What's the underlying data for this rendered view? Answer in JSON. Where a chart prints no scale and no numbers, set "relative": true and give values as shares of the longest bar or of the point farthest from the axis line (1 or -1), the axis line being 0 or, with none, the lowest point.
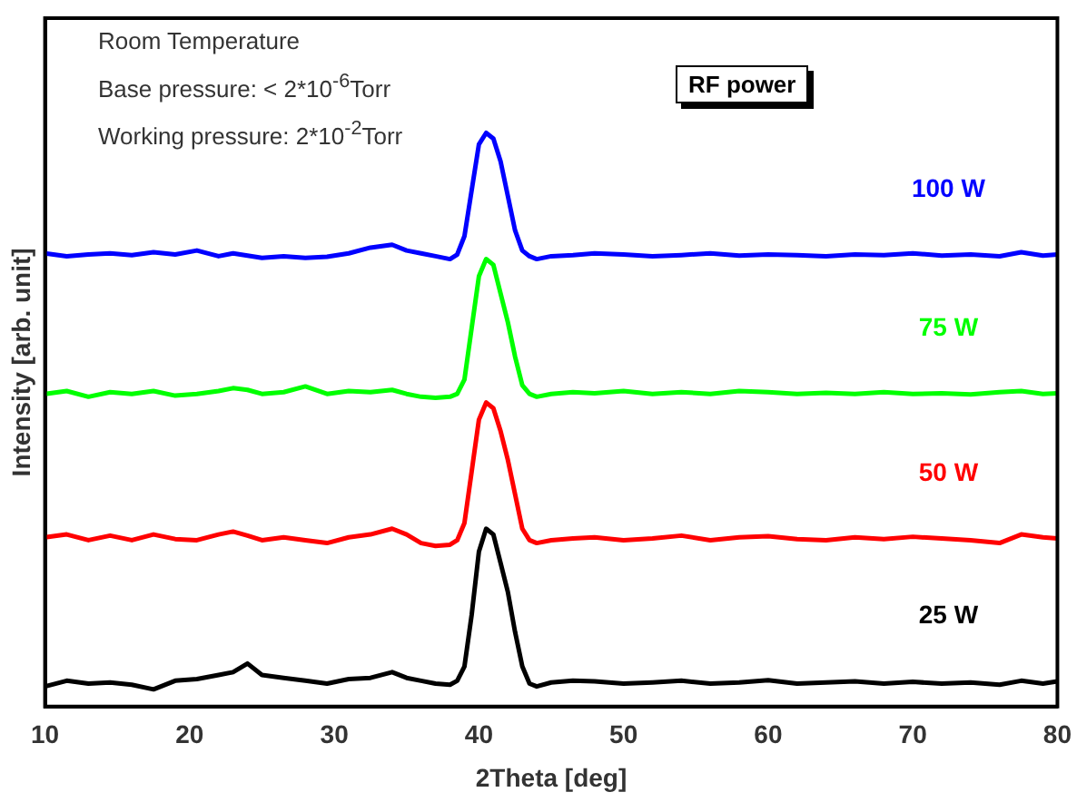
{
  "chart_data": {
    "type": "line",
    "relative": true,
    "xlabel": "2Theta [deg]",
    "ylabel": "Intensity [arb. unit]",
    "legend_title": "RF power",
    "annotations": [
      "Room Temperature",
      "Base pressure: < 2*10$^{-6}$Torr",
      "Working pressure: 2*10$^{-2}$Torr"
    ],
    "xlim": [
      10,
      80
    ],
    "xticks": [
      10,
      20,
      30,
      40,
      50,
      60,
      70,
      80
    ],
    "grid": false,
    "legend": false,
    "marker": "none",
    "line_style": "solid",
    "x": [
      10,
      11.5,
      13,
      14.5,
      16,
      17.5,
      19,
      20.5,
      22,
      23,
      24,
      25,
      26.5,
      28,
      29.5,
      31,
      32.5,
      34,
      35,
      36,
      37,
      38,
      38.5,
      39,
      39.5,
      40,
      40.5,
      41,
      41.5,
      42,
      42.5,
      43,
      43.5,
      44,
      45,
      46.5,
      48,
      50,
      52,
      54,
      56,
      58,
      60,
      62,
      64,
      66,
      68,
      70,
      72,
      74,
      76,
      77.5,
      79,
      80
    ],
    "series": [
      {
        "name": "100 W",
        "color": "#0000ff",
        "values": [
          0.79,
          0.785,
          0.788,
          0.79,
          0.787,
          0.792,
          0.788,
          0.795,
          0.785,
          0.79,
          0.786,
          0.782,
          0.785,
          0.782,
          0.784,
          0.79,
          0.8,
          0.805,
          0.795,
          0.79,
          0.785,
          0.78,
          0.788,
          0.82,
          0.9,
          0.98,
          1,
          0.99,
          0.95,
          0.89,
          0.83,
          0.795,
          0.785,
          0.78,
          0.785,
          0.787,
          0.79,
          0.788,
          0.785,
          0.787,
          0.79,
          0.786,
          0.788,
          0.787,
          0.785,
          0.788,
          0.787,
          0.79,
          0.786,
          0.788,
          0.785,
          0.792,
          0.786,
          0.788
        ]
      },
      {
        "name": "75 W",
        "color": "#00ff00",
        "values": [
          0.545,
          0.55,
          0.54,
          0.548,
          0.545,
          0.55,
          0.542,
          0.545,
          0.55,
          0.555,
          0.552,
          0.545,
          0.548,
          0.558,
          0.545,
          0.55,
          0.548,
          0.552,
          0.545,
          0.54,
          0.538,
          0.54,
          0.545,
          0.57,
          0.66,
          0.75,
          0.78,
          0.77,
          0.72,
          0.67,
          0.61,
          0.56,
          0.545,
          0.54,
          0.545,
          0.548,
          0.546,
          0.55,
          0.545,
          0.548,
          0.545,
          0.55,
          0.548,
          0.545,
          0.547,
          0.545,
          0.548,
          0.545,
          0.546,
          0.544,
          0.548,
          0.55,
          0.545,
          0.546
        ]
      },
      {
        "name": "50 W",
        "color": "#ff0000",
        "values": [
          0.295,
          0.3,
          0.29,
          0.298,
          0.29,
          0.3,
          0.292,
          0.29,
          0.3,
          0.305,
          0.298,
          0.29,
          0.295,
          0.29,
          0.285,
          0.295,
          0.3,
          0.31,
          0.3,
          0.285,
          0.28,
          0.282,
          0.29,
          0.32,
          0.41,
          0.5,
          0.53,
          0.52,
          0.48,
          0.43,
          0.37,
          0.31,
          0.29,
          0.285,
          0.29,
          0.293,
          0.295,
          0.29,
          0.293,
          0.298,
          0.29,
          0.295,
          0.297,
          0.292,
          0.29,
          0.295,
          0.292,
          0.296,
          0.293,
          0.29,
          0.285,
          0.3,
          0.295,
          0.293
        ]
      },
      {
        "name": "25 W",
        "color": "#000000",
        "values": [
          0.035,
          0.045,
          0.04,
          0.042,
          0.038,
          0.03,
          0.045,
          0.048,
          0.055,
          0.06,
          0.075,
          0.055,
          0.05,
          0.045,
          0.04,
          0.048,
          0.05,
          0.06,
          0.05,
          0.045,
          0.04,
          0.038,
          0.045,
          0.07,
          0.16,
          0.27,
          0.31,
          0.3,
          0.25,
          0.2,
          0.13,
          0.07,
          0.04,
          0.035,
          0.042,
          0.045,
          0.044,
          0.04,
          0.042,
          0.045,
          0.04,
          0.042,
          0.046,
          0.04,
          0.042,
          0.044,
          0.04,
          0.043,
          0.04,
          0.042,
          0.038,
          0.045,
          0.04,
          0.044
        ]
      }
    ]
  }
}
